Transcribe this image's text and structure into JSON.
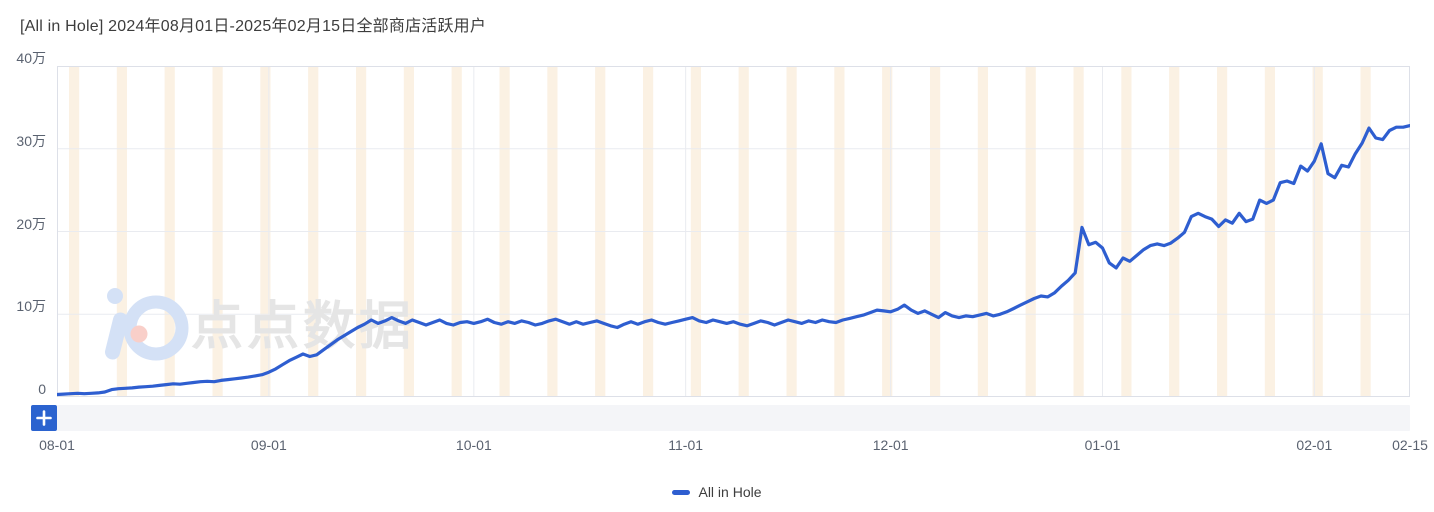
{
  "title": "[All in Hole] 2024年08月01日-2025年02月15日全部商店活跃用户",
  "legend": {
    "label": "All in Hole"
  },
  "watermark": {
    "text": "点点数据"
  },
  "toolbar": {
    "add_button": "+"
  },
  "colors": {
    "line": "#2e5ed0",
    "weekend_stripe": "#fbf1e3",
    "grid": "#e9ebf0",
    "border": "#dde0e8",
    "axis_text": "#5a6270",
    "title_text": "#3d3d3d",
    "button_blue": "#2b63cf",
    "track_gray": "#f4f5f8",
    "watermark_text": "#e5e5e5",
    "watermark_blue": "#d4e1f6",
    "watermark_pink": "#f9cfc9"
  },
  "chart_data": {
    "type": "line",
    "title": "[All in Hole] 2024年08月01日-2025年02月15日全部商店活跃用户",
    "series_name": "All in Hole",
    "unit": "万 (10k active users)",
    "start_date": "2024-08-01",
    "end_date": "2025-02-15",
    "days_total": 199,
    "ylim_wan": [
      0,
      40
    ],
    "y_ticks": [
      {
        "label": "40万",
        "value": 40
      },
      {
        "label": "30万",
        "value": 30
      },
      {
        "label": "20万",
        "value": 20
      },
      {
        "label": "10万",
        "value": 10
      },
      {
        "label": "0",
        "value": 0
      }
    ],
    "x_ticks": [
      {
        "label": "08-01",
        "day": 0
      },
      {
        "label": "09-01",
        "day": 31
      },
      {
        "label": "10-01",
        "day": 61
      },
      {
        "label": "11-01",
        "day": 92
      },
      {
        "label": "12-01",
        "day": 122
      },
      {
        "label": "01-01",
        "day": 153
      },
      {
        "label": "02-01",
        "day": 184
      },
      {
        "label": "02-15",
        "day": 198
      }
    ],
    "weekend_shading": "Saturday-Sunday columns shaded",
    "saturday_day_mod7": 2,
    "values_wan": [
      0.3,
      0.35,
      0.4,
      0.45,
      0.4,
      0.45,
      0.5,
      0.6,
      0.9,
      1.0,
      1.05,
      1.1,
      1.2,
      1.25,
      1.3,
      1.4,
      1.5,
      1.6,
      1.55,
      1.65,
      1.75,
      1.85,
      1.9,
      1.85,
      2.0,
      2.1,
      2.2,
      2.3,
      2.4,
      2.55,
      2.7,
      3.0,
      3.4,
      3.9,
      4.4,
      4.8,
      5.2,
      4.9,
      5.1,
      5.7,
      6.3,
      6.9,
      7.4,
      7.9,
      8.4,
      8.8,
      9.3,
      8.9,
      9.2,
      9.6,
      9.2,
      8.9,
      9.3,
      9.0,
      8.7,
      9.0,
      9.3,
      8.9,
      8.7,
      9.0,
      9.1,
      8.9,
      9.1,
      9.4,
      9.0,
      8.8,
      9.1,
      8.9,
      9.2,
      9.0,
      8.7,
      8.9,
      9.2,
      9.4,
      9.1,
      8.8,
      9.1,
      8.8,
      9.0,
      9.2,
      8.9,
      8.6,
      8.4,
      8.8,
      9.1,
      8.8,
      9.1,
      9.3,
      9.0,
      8.8,
      9.0,
      9.2,
      9.4,
      9.6,
      9.2,
      9.0,
      9.3,
      9.1,
      8.9,
      9.1,
      8.8,
      8.6,
      8.9,
      9.2,
      9.0,
      8.7,
      9.0,
      9.3,
      9.1,
      8.9,
      9.2,
      9.0,
      9.3,
      9.1,
      9.0,
      9.3,
      9.5,
      9.7,
      9.9,
      10.2,
      10.5,
      10.4,
      10.3,
      10.6,
      11.1,
      10.5,
      10.1,
      10.4,
      10.0,
      9.6,
      10.2,
      9.8,
      9.6,
      9.8,
      9.7,
      9.9,
      10.1,
      9.8,
      10.0,
      10.3,
      10.7,
      11.1,
      11.5,
      11.9,
      12.2,
      12.1,
      12.6,
      13.4,
      14.1,
      15.0,
      20.5,
      18.4,
      18.7,
      18.0,
      16.2,
      15.6,
      16.8,
      16.4,
      17.1,
      17.8,
      18.3,
      18.5,
      18.3,
      18.6,
      19.2,
      19.9,
      21.8,
      22.2,
      21.8,
      21.5,
      20.6,
      21.4,
      21.0,
      22.2,
      21.2,
      21.5,
      23.8,
      23.4,
      23.8,
      25.9,
      26.1,
      25.8,
      27.9,
      27.3,
      28.5,
      30.6,
      27.0,
      26.5,
      28.0,
      27.8,
      29.4,
      30.7,
      32.5,
      31.3,
      31.1,
      32.2,
      32.6,
      32.6,
      32.8
    ]
  },
  "layout_note": "daily line chart with weekend shading, bottom data-zoom bar and centered legend"
}
